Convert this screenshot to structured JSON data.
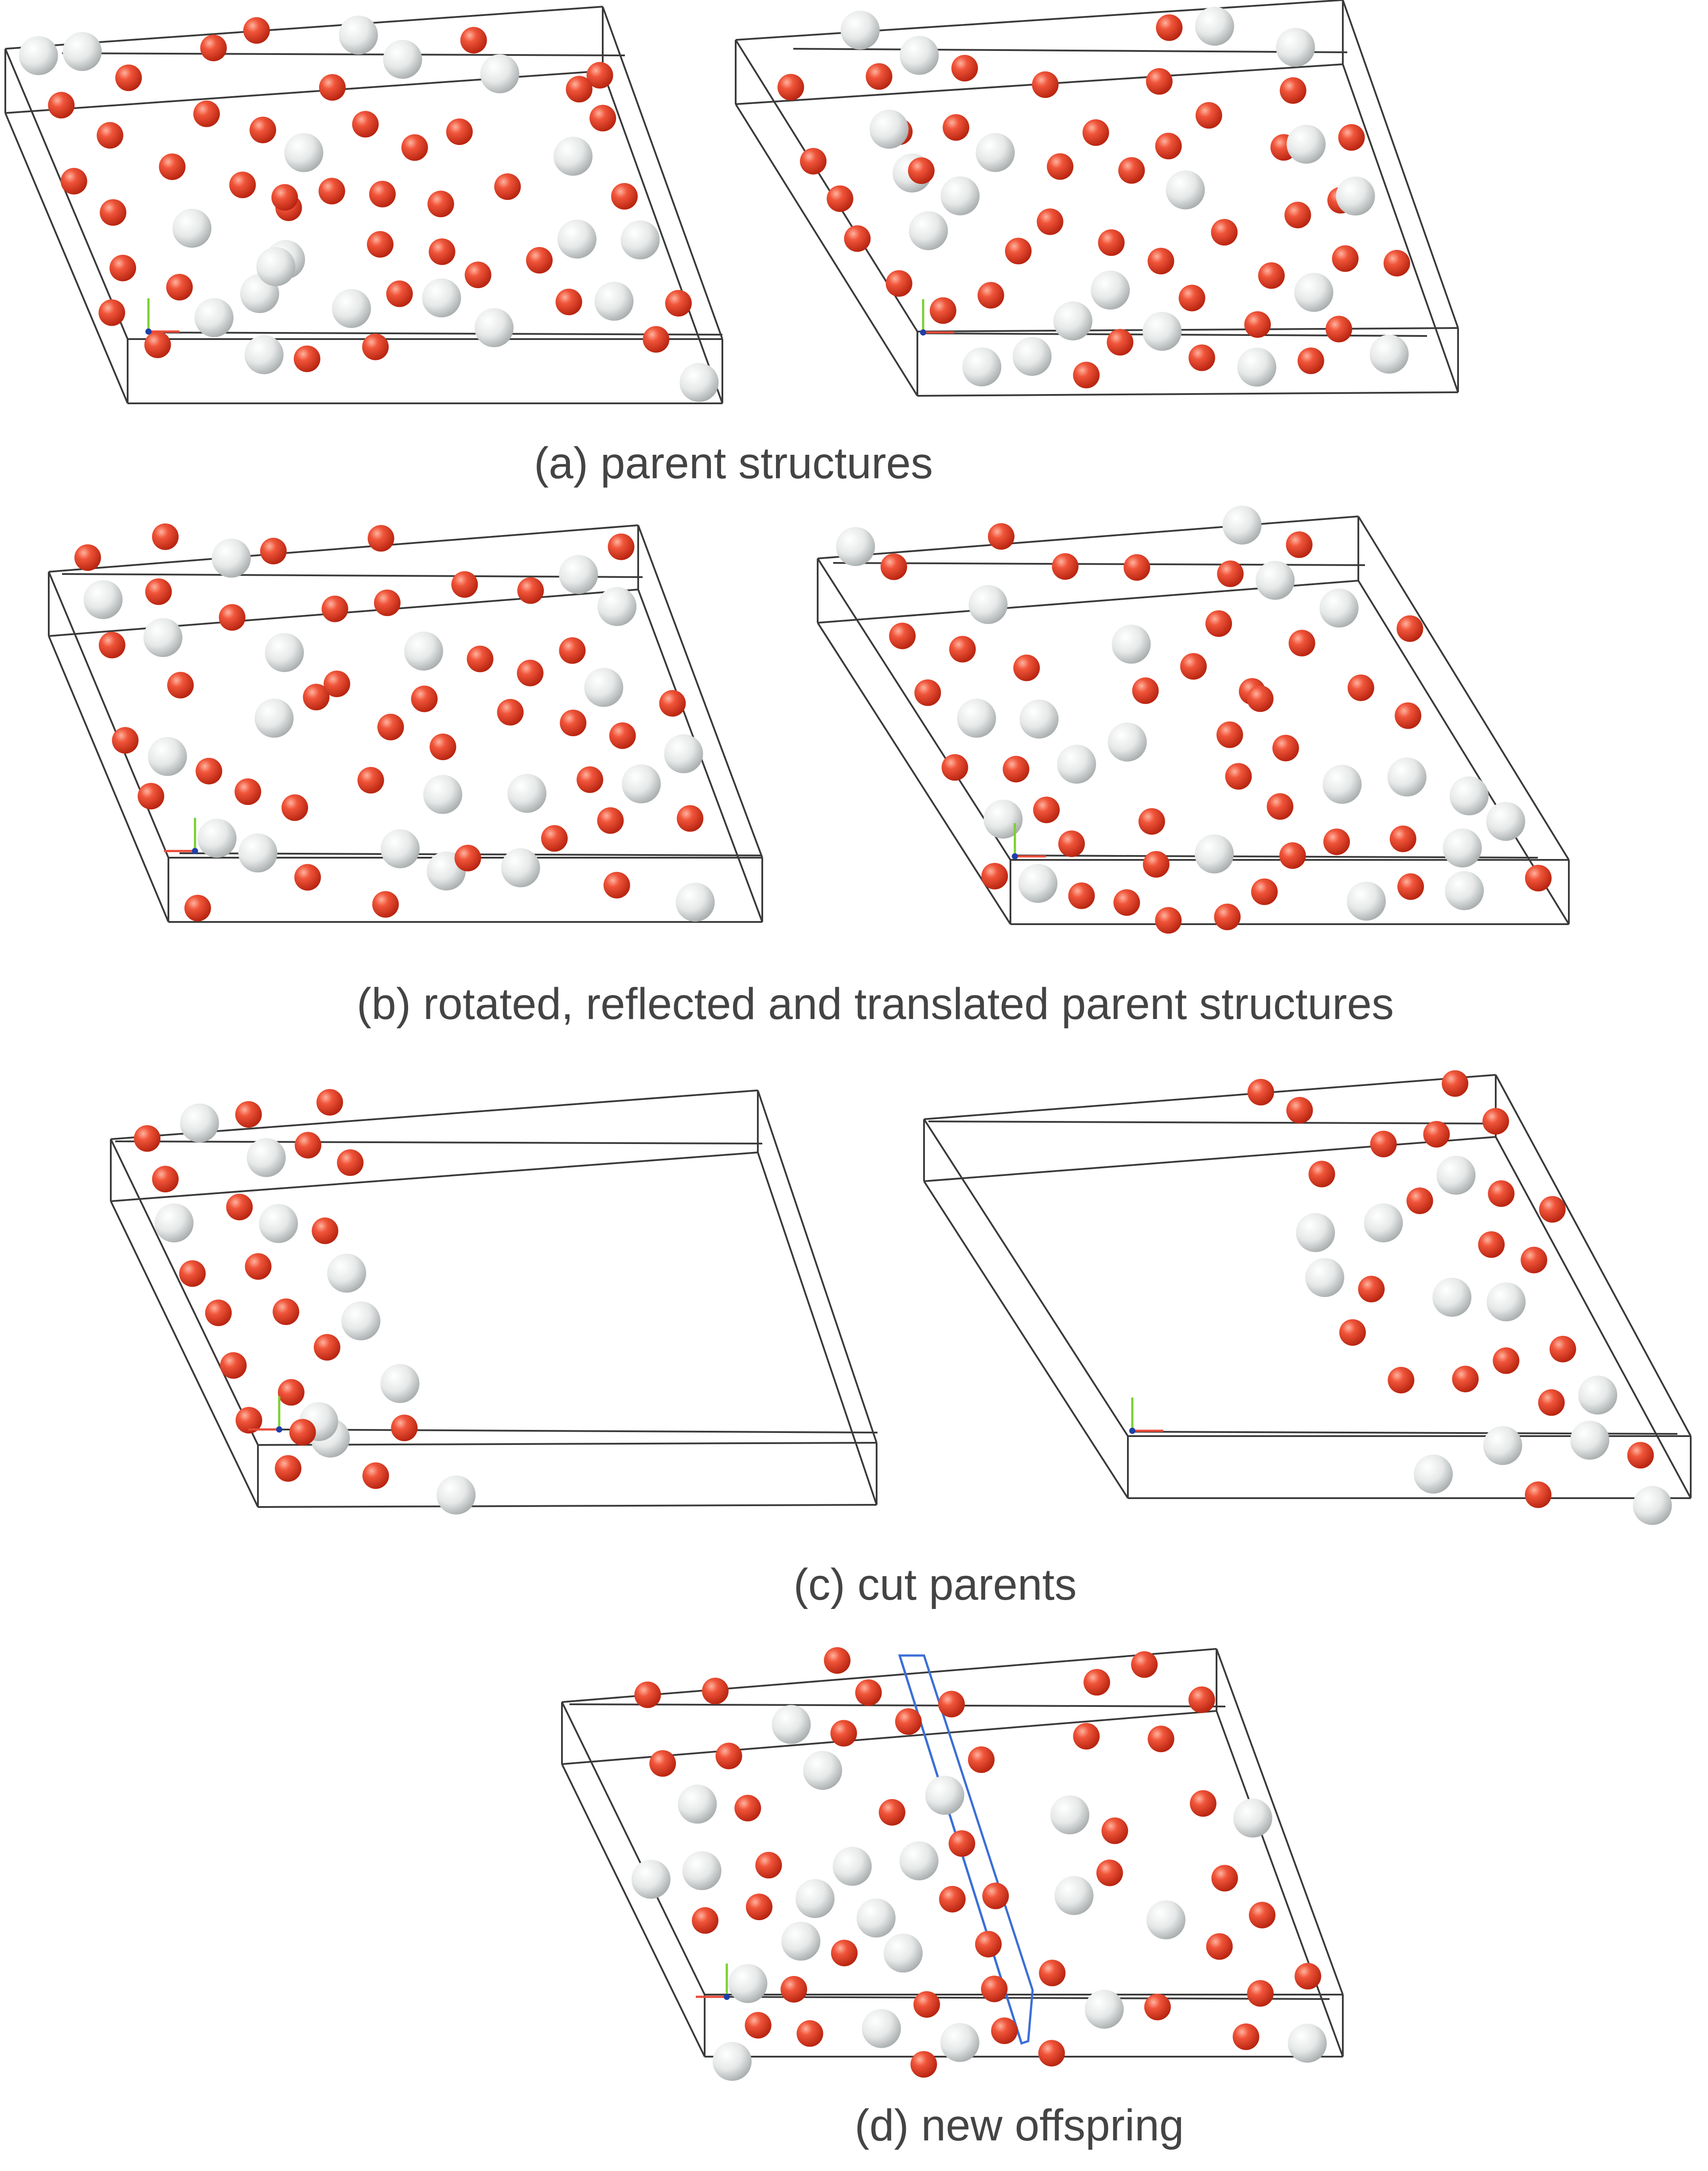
{
  "colors": {
    "cell_edge": "#3a3a3a",
    "oxygen_atom": "#e8442c",
    "silicon_atom": "#d9dcdc",
    "cut_plane": "#3b6fd6",
    "axis_x": "#e84b3a",
    "axis_y": "#7ad030",
    "axis_z": "#1f3fa8"
  },
  "panels": [
    {
      "id": "a",
      "caption": "(a) parent structures"
    },
    {
      "id": "b",
      "caption": "(b) rotated, reflected and translated parent structures"
    },
    {
      "id": "c",
      "caption": "(c) cut parents"
    },
    {
      "id": "d",
      "caption": "(d) new offspring"
    }
  ]
}
